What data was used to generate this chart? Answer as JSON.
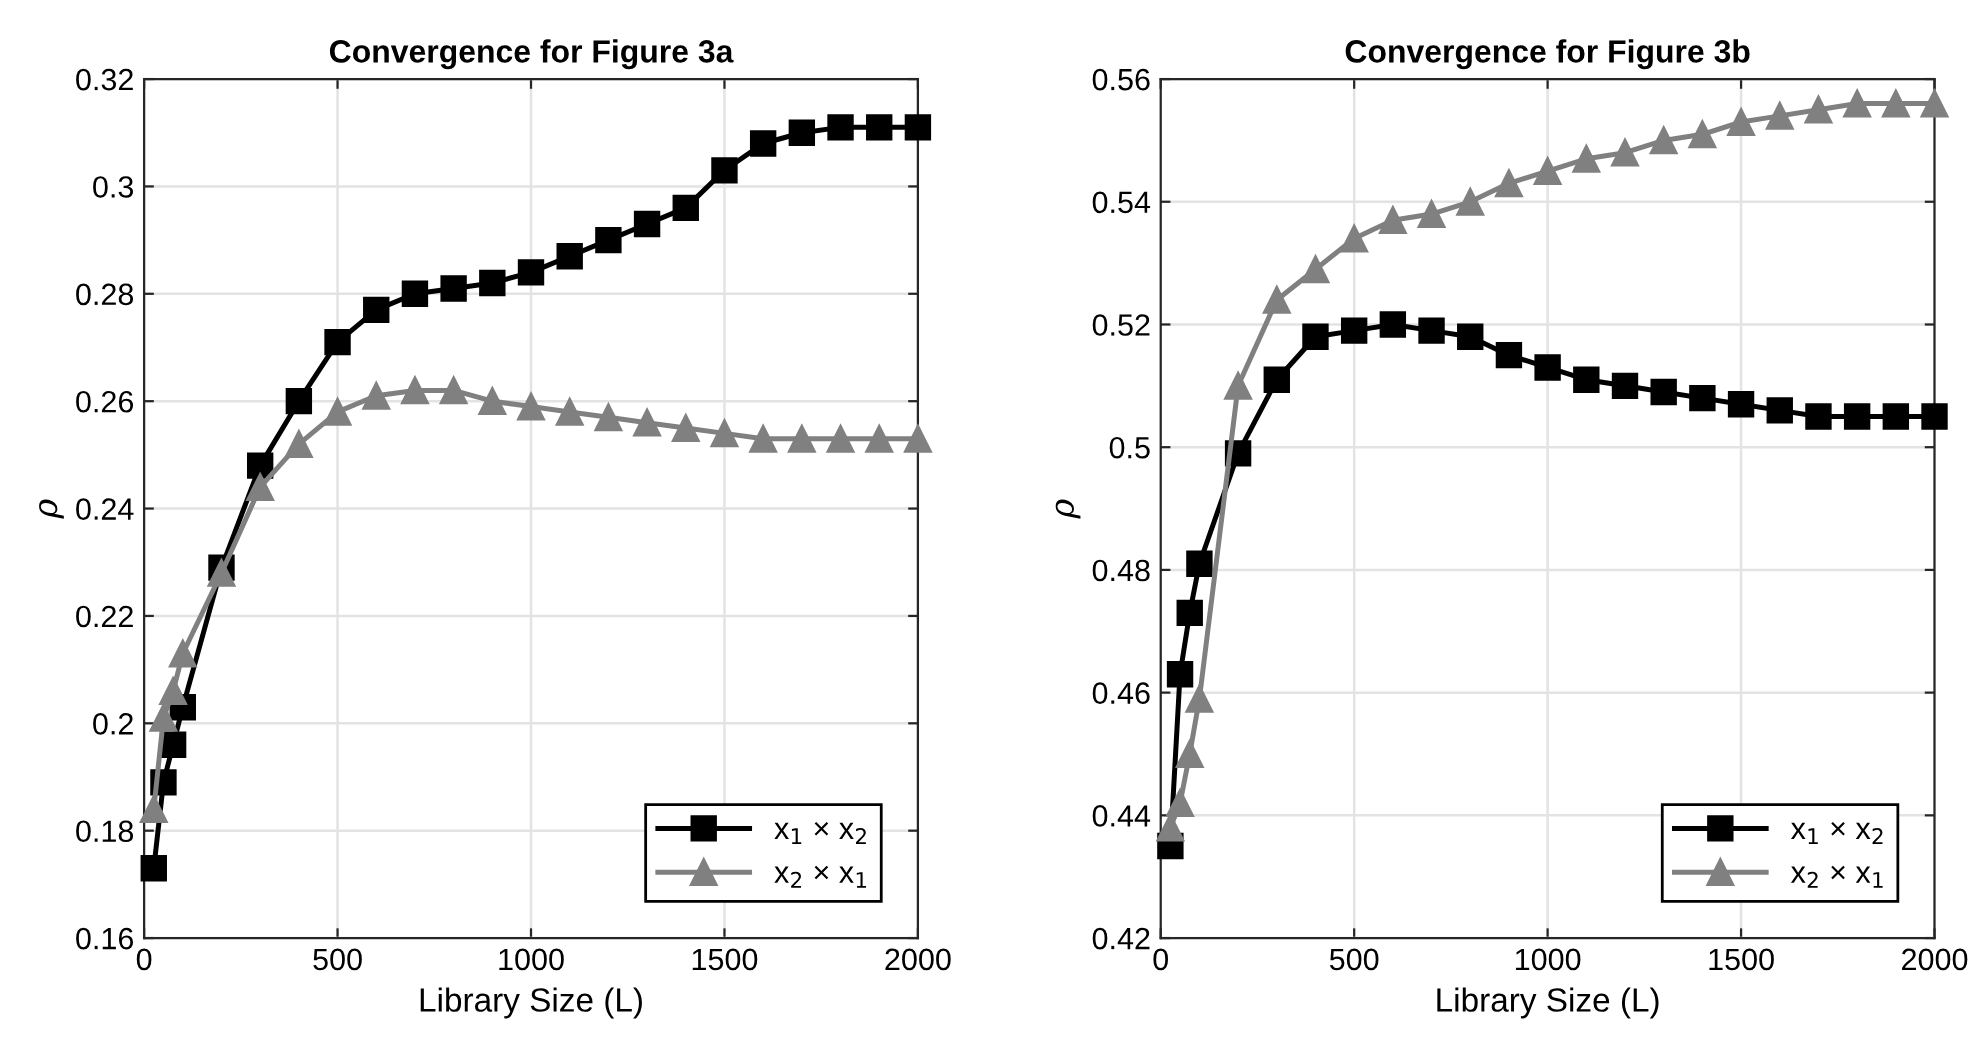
{
  "chart_data": [
    {
      "type": "line",
      "title": "Convergence for Figure 3a",
      "xlabel": "Library Size (L)",
      "ylabel": "ρ",
      "x": [
        25,
        50,
        75,
        100,
        200,
        300,
        400,
        500,
        600,
        700,
        800,
        900,
        1000,
        1100,
        1200,
        1300,
        1400,
        1500,
        1600,
        1700,
        1800,
        1900,
        2000
      ],
      "series": [
        {
          "name": "x$_{1}$ × x$_{2}$",
          "color": "#000000",
          "marker": "square",
          "values": [
            0.173,
            0.189,
            0.196,
            0.203,
            0.229,
            0.248,
            0.26,
            0.271,
            0.277,
            0.28,
            0.281,
            0.282,
            0.284,
            0.287,
            0.29,
            0.293,
            0.296,
            0.303,
            0.308,
            0.31,
            0.311,
            0.311,
            0.311
          ]
        },
        {
          "name": "x$_{2}$ × x$_{1}$",
          "color": "#808080",
          "marker": "triangle",
          "values": [
            0.184,
            0.201,
            0.206,
            0.213,
            0.228,
            0.244,
            0.252,
            0.258,
            0.261,
            0.262,
            0.262,
            0.26,
            0.259,
            0.258,
            0.257,
            0.256,
            0.255,
            0.254,
            0.253,
            0.253,
            0.253,
            0.253,
            0.253
          ]
        }
      ],
      "xlim": [
        0,
        2000
      ],
      "xticks": [
        0,
        500,
        1000,
        1500,
        2000
      ],
      "ylim": [
        0.16,
        0.32
      ],
      "yticks": [
        0.16,
        0.18,
        0.2,
        0.22,
        0.24,
        0.26,
        0.28,
        0.3,
        0.32
      ],
      "grid": true,
      "legend": "bottom right",
      "line_style": "solid"
    },
    {
      "type": "line",
      "title": "Convergence for Figure 3b",
      "xlabel": "Library Size (L)",
      "ylabel": "ρ",
      "x": [
        25,
        50,
        75,
        100,
        200,
        300,
        400,
        500,
        600,
        700,
        800,
        900,
        1000,
        1100,
        1200,
        1300,
        1400,
        1500,
        1600,
        1700,
        1800,
        1900,
        2000
      ],
      "series": [
        {
          "name": "x$_{1}$ × x$_{2}$",
          "color": "#000000",
          "marker": "square",
          "values": [
            0.435,
            0.463,
            0.473,
            0.481,
            0.499,
            0.511,
            0.518,
            0.519,
            0.52,
            0.519,
            0.518,
            0.515,
            0.513,
            0.511,
            0.51,
            0.509,
            0.508,
            0.507,
            0.506,
            0.505,
            0.505,
            0.505,
            0.505
          ]
        },
        {
          "name": "x$_{2}$ × x$_{1}$",
          "color": "#808080",
          "marker": "triangle",
          "values": [
            0.438,
            0.442,
            0.45,
            0.459,
            0.51,
            0.524,
            0.529,
            0.534,
            0.537,
            0.538,
            0.54,
            0.543,
            0.545,
            0.547,
            0.548,
            0.55,
            0.551,
            0.553,
            0.554,
            0.555,
            0.556,
            0.556,
            0.556
          ]
        }
      ],
      "xlim": [
        0,
        2000
      ],
      "xticks": [
        0,
        500,
        1000,
        1500,
        2000
      ],
      "ylim": [
        0.42,
        0.56
      ],
      "yticks": [
        0.42,
        0.44,
        0.46,
        0.48,
        0.5,
        0.52,
        0.54,
        0.56
      ],
      "grid": true,
      "legend": "bottom right",
      "line_style": "solid"
    }
  ]
}
